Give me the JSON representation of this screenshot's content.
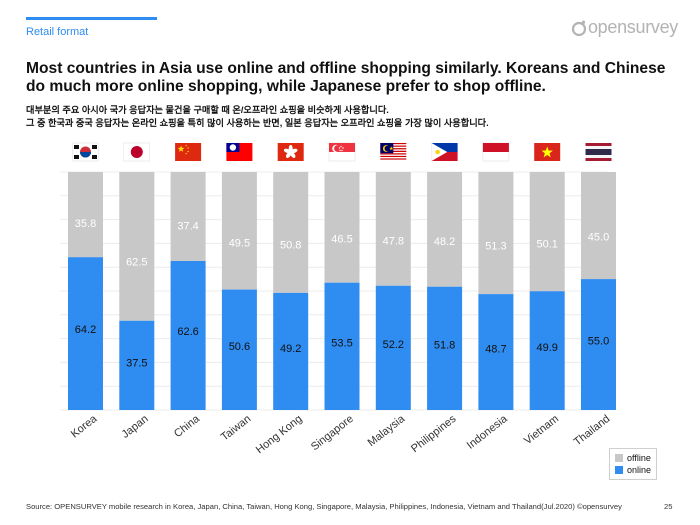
{
  "header": {
    "section_label": "Retail format",
    "logo_text": "opensurvey"
  },
  "headline": {
    "line1": "Most countries in Asia use online and offline shopping similarly. Koreans and Chinese",
    "line2": "do much more online shopping, while Japanese prefer to shop offline."
  },
  "subtitle": {
    "line1": "대부분의 주요 아시아 국가 응답자는 물건을 구매할 때 온/오프라인 쇼핑을 비슷하게 사용합니다.",
    "line2": "그 중 한국과 중국 응답자는 온라인 쇼핑을 특히 많이 사용하는 반면, 일본 응답자는 오프라인 쇼핑을 가장 많이 사용합니다."
  },
  "colors": {
    "online": "#2f8cf0",
    "offline": "#c8c8c8",
    "accent": "#2f8cf0"
  },
  "chart_data": {
    "type": "bar",
    "stacked": true,
    "normalized_percent": true,
    "categories": [
      "Korea",
      "Japan",
      "China",
      "Taiwan",
      "Hong Kong",
      "Singapore",
      "Malaysia",
      "Philippines",
      "Indonesia",
      "Vietnam",
      "Thailand"
    ],
    "series": [
      {
        "name": "online",
        "values": [
          64.2,
          37.5,
          62.6,
          50.6,
          49.2,
          53.5,
          52.2,
          51.8,
          48.7,
          49.9,
          55.0
        ]
      },
      {
        "name": "offline",
        "values": [
          35.8,
          62.5,
          37.4,
          49.5,
          50.8,
          46.5,
          47.8,
          48.2,
          51.3,
          50.1,
          45.0
        ]
      }
    ],
    "labels": {
      "online": [
        "64.2",
        "37.5",
        "62.6",
        "50.6",
        "49.2",
        "53.5",
        "52.2",
        "51.8",
        "48.7",
        "49.9",
        "55.0"
      ],
      "offline": [
        "35.8",
        "62.5",
        "37.4",
        "49.5",
        "50.8",
        "46.5",
        "47.8",
        "48.2",
        "51.3",
        "50.1",
        "45.0"
      ]
    },
    "flags": [
      "korea-flag-icon",
      "japan-flag-icon",
      "china-flag-icon",
      "taiwan-flag-icon",
      "hong-kong-flag-icon",
      "singapore-flag-icon",
      "malaysia-flag-icon",
      "philippines-flag-icon",
      "indonesia-flag-icon",
      "vietnam-flag-icon",
      "thailand-flag-icon"
    ],
    "ylim": [
      0,
      100
    ],
    "grid": true,
    "legend": {
      "position": "bottom-right",
      "entries": [
        "offline",
        "online"
      ]
    }
  },
  "footer": {
    "source": "Source: OPENSURVEY mobile research in Korea, Japan, China, Taiwan, Hong Kong, Singapore, Malaysia, Philippines, Indonesia, Vietnam and Thailand(Jul.2020) ©opensurvey",
    "page_number": "25"
  }
}
